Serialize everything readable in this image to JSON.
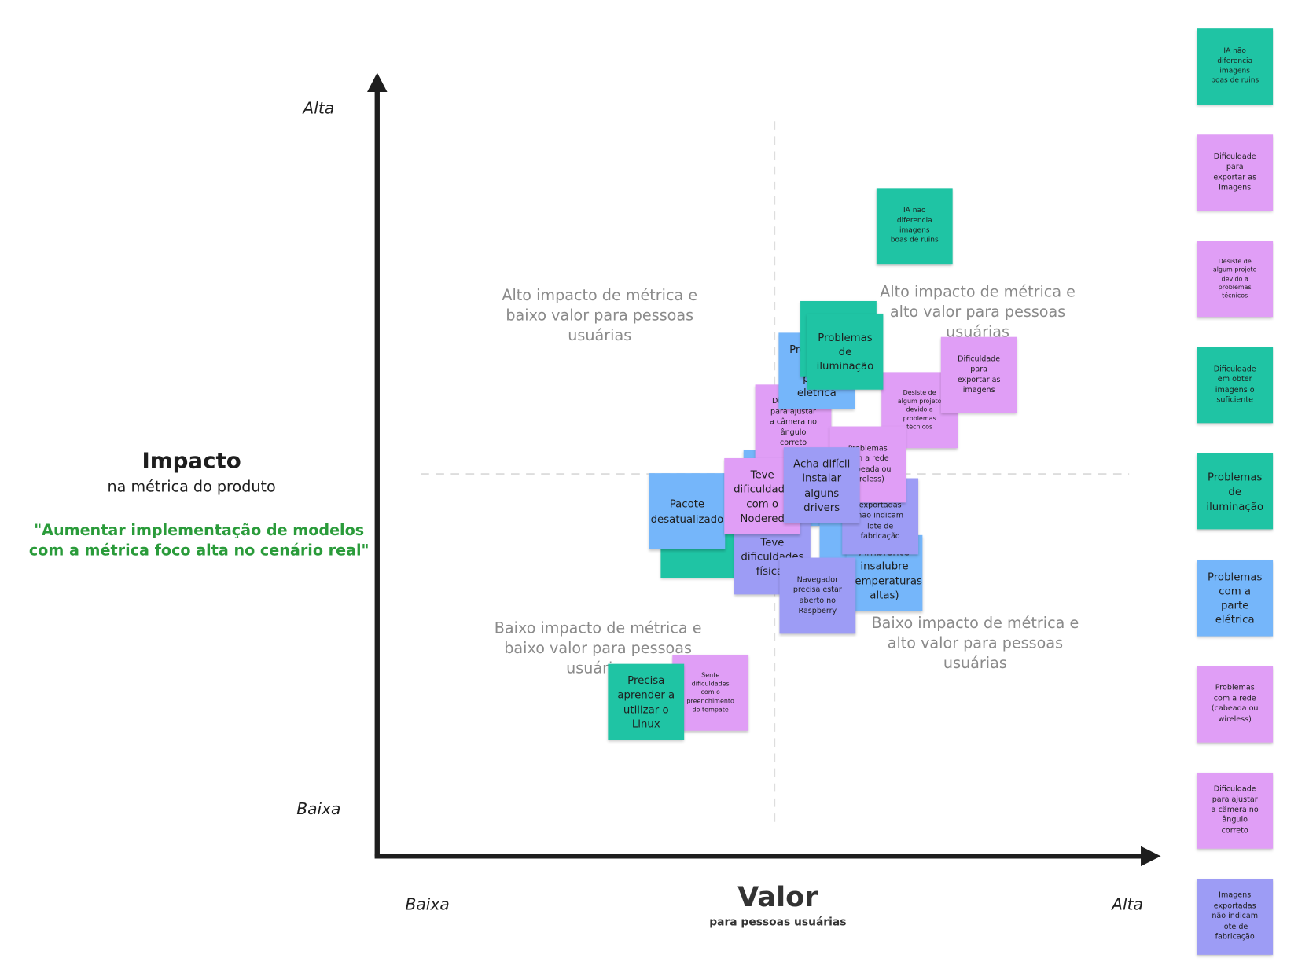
{
  "axes": {
    "y_title": "Impacto",
    "y_subtitle": "na métrica do produto",
    "y_high": "Alta",
    "y_low": "Baixa",
    "x_title": "Valor",
    "x_subtitle": "para pessoas usuárias",
    "x_low": "Baixa",
    "x_high": "Alta"
  },
  "goal": [
    "\"Aumentar implementação de modelos",
    "com a métrica foco alta no cenário real\""
  ],
  "quadrants": [
    "Alto impacto de métrica e baixo valor para pessoas usuárias",
    "Alto impacto de métrica e alto valor para pessoas usuárias",
    "Baixo impacto de métrica e baixo valor para pessoas usuárias",
    "Baixo impacto de métrica e alto valor para pessoas usuárias"
  ],
  "board_notes": [
    {
      "text": "IA não diferencia imagens boas de ruins",
      "color": "#1fc4a4"
    },
    {
      "text": "Desiste de algum projeto devido a problemas técnicos",
      "color": "#e09ef6"
    },
    {
      "text": "Dificuldade para exportar as imagens",
      "color": "#e09ef6"
    },
    {
      "text": "Pacote desatualizado",
      "color": "#75b6fa"
    },
    {
      "text": "Dificuldade para ajustar a câmera no ângulo correto",
      "color": "#e09ef6"
    },
    {
      "text": "Problemas com a parte elétrica",
      "color": "#75b6fa"
    },
    {
      "text": "Problemas de iluminação",
      "color": "#1fc4a4"
    },
    {
      "text": "Teve dificuldades físicas",
      "color": "#9d9cf5"
    },
    {
      "text": "Teve dificuldade com o Nodered",
      "color": "#e09ef6"
    },
    {
      "text": "Ambiente insalubre (temperaturas altas)",
      "color": "#75b6fa"
    },
    {
      "text": "Imagens exportadas não indicam lote de fabricação",
      "color": "#9d9cf5"
    },
    {
      "text": "Problemas com a rede (cabeada ou wireless)",
      "color": "#e09ef6"
    },
    {
      "text": "Acha difícil instalar alguns drivers",
      "color": "#9d9cf5"
    },
    {
      "text": "Navegador precisa estar aberto no Raspberry",
      "color": "#9d9cf5"
    },
    {
      "text": "Sente dificuldades com o preenchimento do tempate",
      "color": "#e09ef6"
    },
    {
      "text": "Precisa aprender a utilizar o Linux",
      "color": "#1fc4a4"
    }
  ],
  "backlog_notes": [
    {
      "text": "IA não diferencia imagens boas de ruins",
      "color": "#1fc4a4"
    },
    {
      "text": "Dificuldade para exportar as imagens",
      "color": "#e09ef6"
    },
    {
      "text": "Desiste de algum projeto devido a problemas técnicos",
      "color": "#e09ef6"
    },
    {
      "text": "Dificuldade em obter imagens o suficiente",
      "color": "#1fc4a4"
    },
    {
      "text": "Problemas de iluminação",
      "color": "#1fc4a4"
    },
    {
      "text": "Problemas com a parte elétrica",
      "color": "#75b6fa"
    },
    {
      "text": "Problemas com a rede (cabeada ou wireless)",
      "color": "#e09ef6"
    },
    {
      "text": "Dificuldade para ajustar a câmera no ângulo correto",
      "color": "#e09ef6"
    },
    {
      "text": "Imagens exportadas não indicam lote de fabricação",
      "color": "#9d9cf5"
    }
  ]
}
